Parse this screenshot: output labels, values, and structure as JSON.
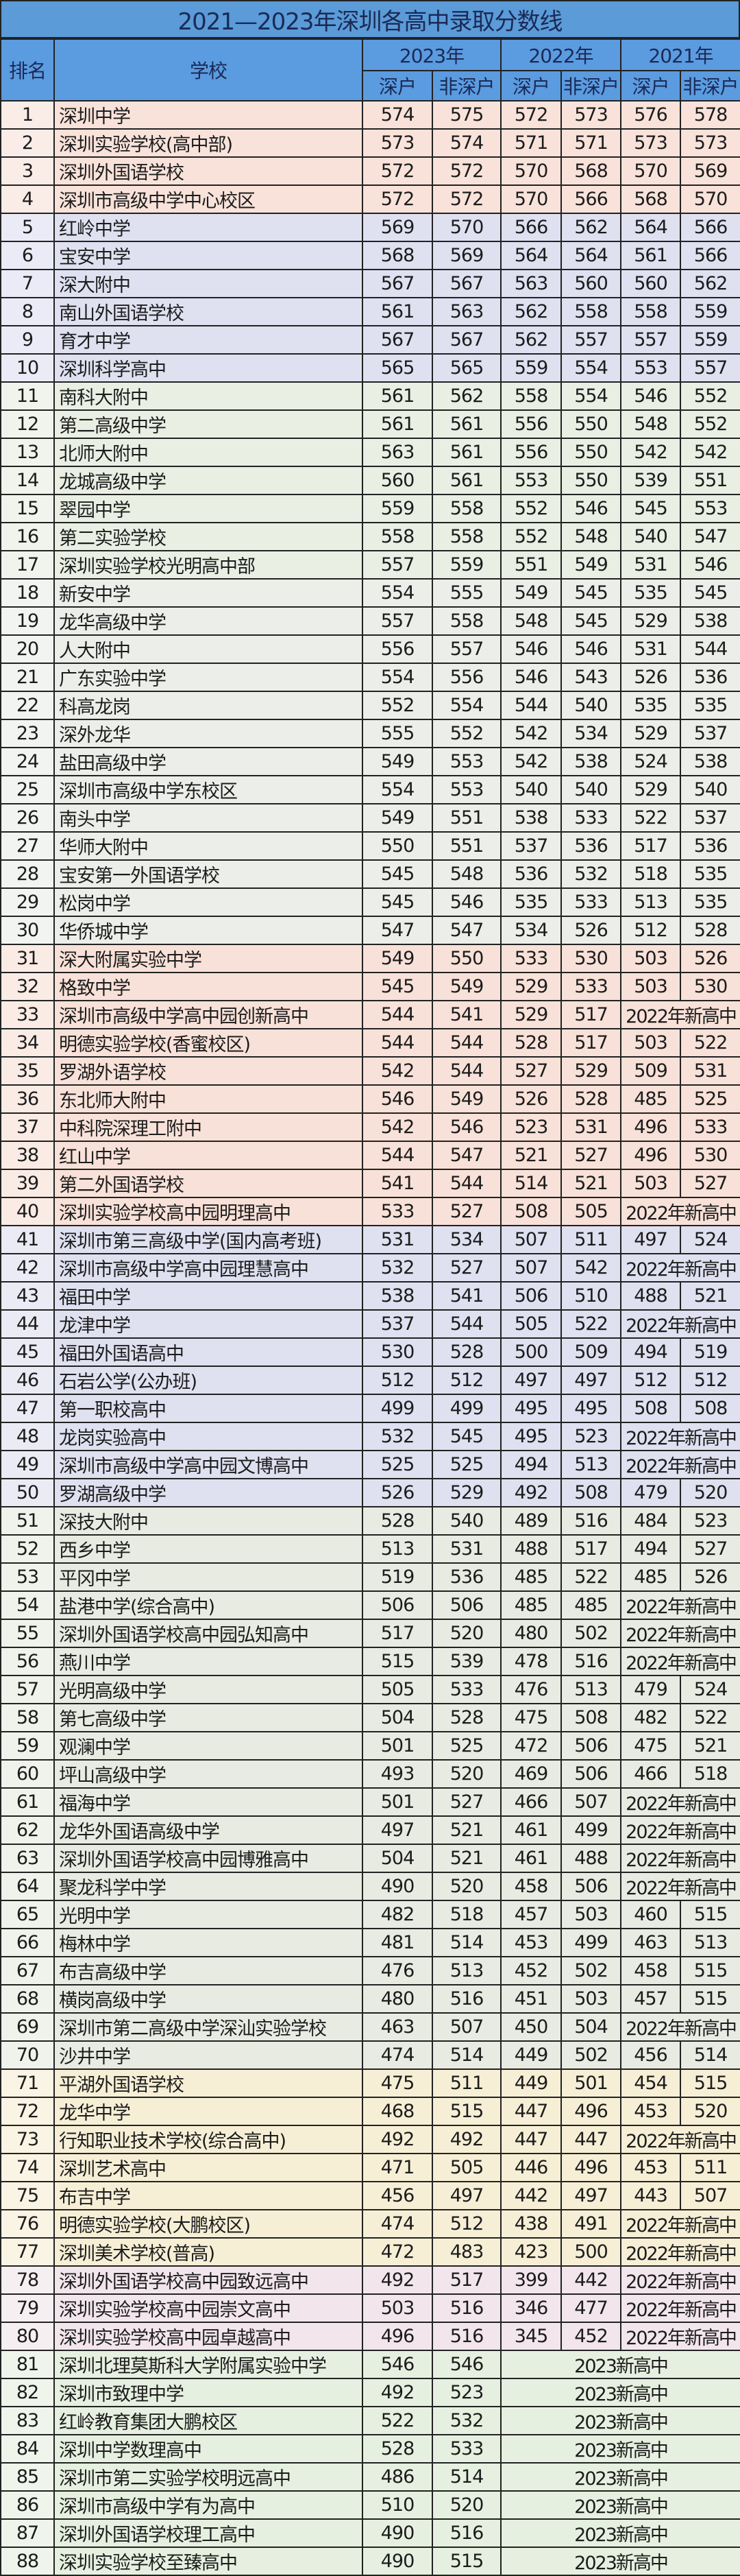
{
  "title": "2021—2023年深圳各高中录取分数线",
  "headers": {
    "rank": "排名",
    "school": "学校",
    "years": [
      "2023年",
      "2022年",
      "2021年"
    ],
    "sub": [
      "深户",
      "非深户",
      "深户",
      "非深户",
      "深户",
      "非深户"
    ]
  },
  "colors": {
    "title_bg": "#5a9bd8",
    "header_bg": "#5b9be0",
    "bands": [
      {
        "from": 1,
        "to": 4,
        "color": "#f8e2da"
      },
      {
        "from": 5,
        "to": 10,
        "color": "#dfe1f1"
      },
      {
        "from": 11,
        "to": 17,
        "color": "#e9efe3"
      },
      {
        "from": 18,
        "to": 30,
        "color": "#eceeea"
      },
      {
        "from": 31,
        "to": 40,
        "color": "#f8e1d8"
      },
      {
        "from": 41,
        "to": 50,
        "color": "#dfe0f0"
      },
      {
        "from": 51,
        "to": 70,
        "color": "#e8ebe2"
      },
      {
        "from": 71,
        "to": 77,
        "color": "#f6efd6"
      },
      {
        "from": 78,
        "to": 80,
        "color": "#f2e6ec"
      },
      {
        "from": 81,
        "to": 88,
        "color": "#e6f0e0"
      }
    ]
  },
  "rows": [
    [
      "1",
      "深圳中学",
      "574",
      "575",
      "572",
      "573",
      "576",
      "578"
    ],
    [
      "2",
      "深圳实验学校(高中部)",
      "573",
      "574",
      "571",
      "571",
      "573",
      "573"
    ],
    [
      "3",
      "深圳外国语学校",
      "572",
      "572",
      "570",
      "568",
      "570",
      "569"
    ],
    [
      "4",
      "深圳市高级中学中心校区",
      "572",
      "572",
      "570",
      "566",
      "568",
      "570"
    ],
    [
      "5",
      "红岭中学",
      "569",
      "570",
      "566",
      "562",
      "564",
      "566"
    ],
    [
      "6",
      "宝安中学",
      "568",
      "569",
      "564",
      "564",
      "561",
      "566"
    ],
    [
      "7",
      "深大附中",
      "567",
      "567",
      "563",
      "560",
      "560",
      "562"
    ],
    [
      "8",
      "南山外国语学校",
      "561",
      "563",
      "562",
      "558",
      "558",
      "559"
    ],
    [
      "9",
      "育才中学",
      "567",
      "567",
      "562",
      "557",
      "557",
      "559"
    ],
    [
      "10",
      "深圳科学高中",
      "565",
      "565",
      "559",
      "554",
      "553",
      "557"
    ],
    [
      "11",
      "南科大附中",
      "561",
      "562",
      "558",
      "554",
      "546",
      "552"
    ],
    [
      "12",
      "第二高级中学",
      "561",
      "561",
      "556",
      "550",
      "548",
      "552"
    ],
    [
      "13",
      "北师大附中",
      "563",
      "561",
      "556",
      "550",
      "542",
      "542"
    ],
    [
      "14",
      "龙城高级中学",
      "560",
      "561",
      "553",
      "550",
      "539",
      "551"
    ],
    [
      "15",
      "翠园中学",
      "559",
      "558",
      "552",
      "546",
      "545",
      "553"
    ],
    [
      "16",
      "第二实验学校",
      "558",
      "558",
      "552",
      "548",
      "540",
      "547"
    ],
    [
      "17",
      "深圳实验学校光明高中部",
      "557",
      "559",
      "551",
      "549",
      "531",
      "546"
    ],
    [
      "18",
      "新安中学",
      "554",
      "555",
      "549",
      "545",
      "535",
      "545"
    ],
    [
      "19",
      "龙华高级中学",
      "557",
      "558",
      "548",
      "545",
      "529",
      "538"
    ],
    [
      "20",
      "人大附中",
      "556",
      "557",
      "546",
      "546",
      "531",
      "544"
    ],
    [
      "21",
      "广东实验中学",
      "554",
      "556",
      "546",
      "543",
      "526",
      "536"
    ],
    [
      "22",
      "科高龙岗",
      "552",
      "554",
      "544",
      "540",
      "535",
      "535"
    ],
    [
      "23",
      "深外龙华",
      "555",
      "552",
      "542",
      "534",
      "529",
      "537"
    ],
    [
      "24",
      "盐田高级中学",
      "549",
      "553",
      "542",
      "538",
      "524",
      "538"
    ],
    [
      "25",
      "深圳市高级中学东校区",
      "554",
      "553",
      "540",
      "540",
      "529",
      "540"
    ],
    [
      "26",
      "南头中学",
      "549",
      "551",
      "538",
      "533",
      "522",
      "537"
    ],
    [
      "27",
      "华师大附中",
      "550",
      "551",
      "537",
      "536",
      "517",
      "536"
    ],
    [
      "28",
      "宝安第一外国语学校",
      "545",
      "548",
      "536",
      "532",
      "518",
      "535"
    ],
    [
      "29",
      "松岗中学",
      "545",
      "546",
      "535",
      "533",
      "513",
      "535"
    ],
    [
      "30",
      "华侨城中学",
      "547",
      "547",
      "534",
      "526",
      "512",
      "528"
    ],
    [
      "31",
      "深大附属实验中学",
      "549",
      "550",
      "533",
      "530",
      "503",
      "526"
    ],
    [
      "32",
      "格致中学",
      "545",
      "549",
      "529",
      "533",
      "503",
      "530"
    ],
    [
      "33",
      "深圳市高级中学高中园创新高中",
      "544",
      "541",
      "529",
      "517",
      "2022年新高中"
    ],
    [
      "34",
      "明德实验学校(香蜜校区)",
      "544",
      "544",
      "528",
      "517",
      "503",
      "522"
    ],
    [
      "35",
      "罗湖外语学校",
      "542",
      "544",
      "527",
      "529",
      "509",
      "531"
    ],
    [
      "36",
      "东北师大附中",
      "546",
      "549",
      "526",
      "528",
      "485",
      "525"
    ],
    [
      "37",
      "中科院深理工附中",
      "542",
      "546",
      "523",
      "531",
      "496",
      "533"
    ],
    [
      "38",
      "红山中学",
      "544",
      "547",
      "521",
      "527",
      "496",
      "530"
    ],
    [
      "39",
      "第二外国语学校",
      "541",
      "544",
      "514",
      "521",
      "503",
      "527"
    ],
    [
      "40",
      "深圳实验学校高中园明理高中",
      "533",
      "527",
      "508",
      "505",
      "2022年新高中"
    ],
    [
      "41",
      "深圳市第三高级中学(国内高考班)",
      "531",
      "534",
      "507",
      "511",
      "497",
      "524"
    ],
    [
      "42",
      "深圳市高级中学高中园理慧高中",
      "532",
      "527",
      "507",
      "542",
      "2022年新高中"
    ],
    [
      "43",
      "福田中学",
      "538",
      "541",
      "506",
      "510",
      "488",
      "521"
    ],
    [
      "44",
      "龙津中学",
      "537",
      "544",
      "505",
      "522",
      "2022年新高中"
    ],
    [
      "45",
      "福田外国语高中",
      "530",
      "528",
      "500",
      "509",
      "494",
      "519"
    ],
    [
      "46",
      "石岩公学(公办班)",
      "512",
      "512",
      "497",
      "497",
      "512",
      "512"
    ],
    [
      "47",
      "第一职校高中",
      "499",
      "499",
      "495",
      "495",
      "508",
      "508"
    ],
    [
      "48",
      "龙岗实验高中",
      "532",
      "545",
      "495",
      "523",
      "2022年新高中"
    ],
    [
      "49",
      "深圳市高级中学高中园文博高中",
      "525",
      "525",
      "494",
      "513",
      "2022年新高中"
    ],
    [
      "50",
      "罗湖高级中学",
      "526",
      "529",
      "492",
      "508",
      "479",
      "520"
    ],
    [
      "51",
      "深技大附中",
      "528",
      "540",
      "489",
      "516",
      "484",
      "523"
    ],
    [
      "52",
      "西乡中学",
      "513",
      "531",
      "488",
      "517",
      "494",
      "527"
    ],
    [
      "53",
      "平冈中学",
      "519",
      "536",
      "485",
      "522",
      "485",
      "526"
    ],
    [
      "54",
      "盐港中学(综合高中)",
      "506",
      "506",
      "485",
      "485",
      "2022年新高中"
    ],
    [
      "55",
      "深圳外国语学校高中园弘知高中",
      "517",
      "520",
      "480",
      "502",
      "2022年新高中"
    ],
    [
      "56",
      "燕川中学",
      "515",
      "539",
      "478",
      "516",
      "2022年新高中"
    ],
    [
      "57",
      "光明高级中学",
      "505",
      "533",
      "476",
      "513",
      "479",
      "524"
    ],
    [
      "58",
      "第七高级中学",
      "504",
      "528",
      "475",
      "508",
      "482",
      "522"
    ],
    [
      "59",
      "观澜中学",
      "501",
      "525",
      "472",
      "506",
      "475",
      "521"
    ],
    [
      "60",
      "坪山高级中学",
      "493",
      "520",
      "469",
      "506",
      "466",
      "518"
    ],
    [
      "61",
      "福海中学",
      "501",
      "527",
      "466",
      "507",
      "2022年新高中"
    ],
    [
      "62",
      "龙华外国语高级中学",
      "497",
      "521",
      "461",
      "499",
      "2022年新高中"
    ],
    [
      "63",
      "深圳外国语学校高中园博雅高中",
      "504",
      "521",
      "461",
      "488",
      "2022年新高中"
    ],
    [
      "64",
      "聚龙科学中学",
      "490",
      "520",
      "458",
      "506",
      "2022年新高中"
    ],
    [
      "65",
      "光明中学",
      "482",
      "518",
      "457",
      "503",
      "460",
      "515"
    ],
    [
      "66",
      "梅林中学",
      "481",
      "514",
      "453",
      "499",
      "463",
      "513"
    ],
    [
      "67",
      "布吉高级中学",
      "476",
      "513",
      "452",
      "502",
      "458",
      "515"
    ],
    [
      "68",
      "横岗高级中学",
      "480",
      "516",
      "451",
      "503",
      "457",
      "515"
    ],
    [
      "69",
      "深圳市第二高级中学深汕实验学校",
      "463",
      "507",
      "450",
      "504",
      "2022年新高中"
    ],
    [
      "70",
      "沙井中学",
      "474",
      "514",
      "449",
      "502",
      "456",
      "514"
    ],
    [
      "71",
      "平湖外国语学校",
      "475",
      "511",
      "449",
      "501",
      "454",
      "515"
    ],
    [
      "72",
      "龙华中学",
      "468",
      "515",
      "447",
      "496",
      "453",
      "520"
    ],
    [
      "73",
      "行知职业技术学校(综合高中)",
      "492",
      "492",
      "447",
      "447",
      "2022年新高中"
    ],
    [
      "74",
      "深圳艺术高中",
      "471",
      "505",
      "446",
      "496",
      "453",
      "511"
    ],
    [
      "75",
      "布吉中学",
      "456",
      "497",
      "442",
      "497",
      "443",
      "507"
    ],
    [
      "76",
      "明德实验学校(大鹏校区)",
      "474",
      "512",
      "438",
      "491",
      "2022年新高中"
    ],
    [
      "77",
      "深圳美术学校(普高)",
      "472",
      "483",
      "423",
      "500",
      "2022年新高中"
    ],
    [
      "78",
      "深圳外国语学校高中园致远高中",
      "492",
      "517",
      "399",
      "442",
      "2022年新高中"
    ],
    [
      "79",
      "深圳实验学校高中园崇文高中",
      "503",
      "516",
      "346",
      "477",
      "2022年新高中"
    ],
    [
      "80",
      "深圳实验学校高中园卓越高中",
      "496",
      "516",
      "345",
      "452",
      "2022年新高中"
    ],
    [
      "81",
      "深圳北理莫斯科大学附属实验中学",
      "546",
      "546",
      "2023新高中"
    ],
    [
      "82",
      "深圳市致理中学",
      "492",
      "523",
      "2023新高中"
    ],
    [
      "83",
      "红岭教育集团大鹏校区",
      "522",
      "532",
      "2023新高中"
    ],
    [
      "84",
      "深圳中学数理高中",
      "528",
      "533",
      "2023新高中"
    ],
    [
      "85",
      "深圳市第二实验学校明远高中",
      "486",
      "514",
      "2023新高中"
    ],
    [
      "86",
      "深圳市高级中学有为高中",
      "510",
      "520",
      "2023新高中"
    ],
    [
      "87",
      "深圳外国语学校理工高中",
      "490",
      "516",
      "2023新高中"
    ],
    [
      "88",
      "深圳实验学校至臻高中",
      "490",
      "515",
      "2023新高中"
    ]
  ]
}
